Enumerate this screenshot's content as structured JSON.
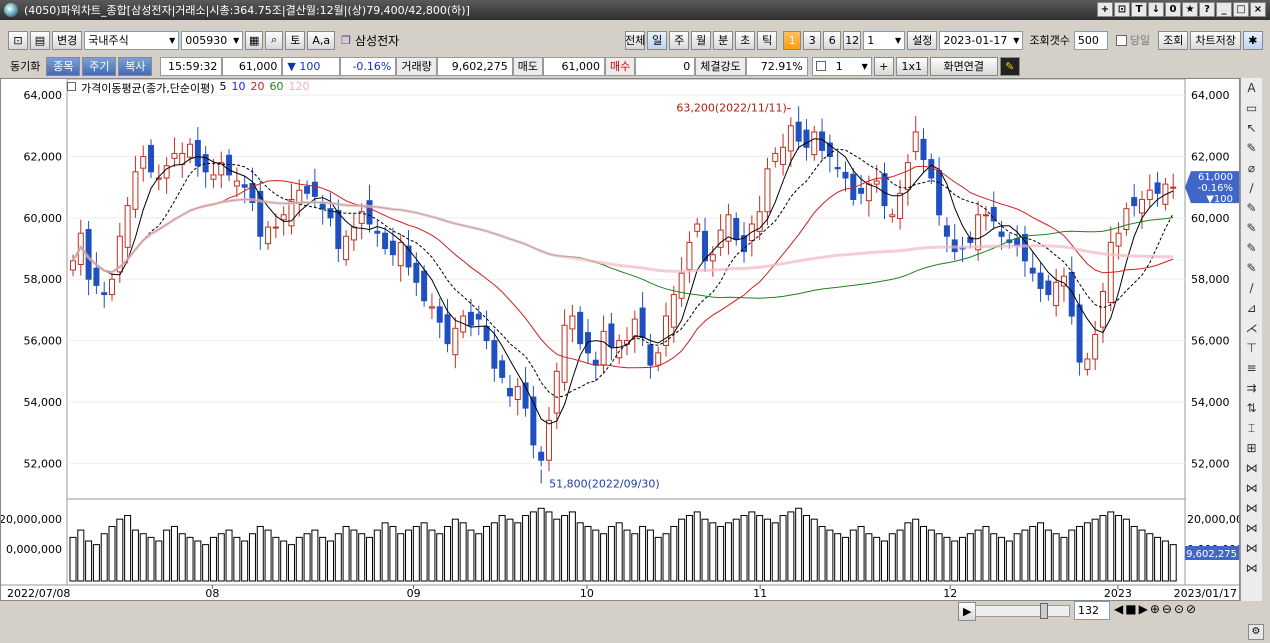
{
  "window": {
    "title": "(4050)파워차트_종합[삼성전자|거래소|시총:364.75조|결산월:12월|(상)79,400/42,800(하)]",
    "buttons": [
      "+",
      "⊡",
      "T",
      "↓",
      "0",
      "★",
      "?",
      "_",
      "□",
      "×"
    ]
  },
  "toolbar1": {
    "change_label": "변경",
    "market": "국내주식",
    "code": "005930",
    "to_label": "토",
    "aa_label": "A,a",
    "stock_name": "삼성전자",
    "periods": [
      "전체",
      "일",
      "주",
      "월",
      "분",
      "초",
      "틱"
    ],
    "active_period": "일",
    "intervals": [
      "1",
      "3",
      "6",
      "12"
    ],
    "active_interval": "1",
    "interval_value": "1",
    "settings_label": "설정",
    "date": "2023-01-17",
    "count_label": "조회갯수",
    "count_value": "500",
    "same_day_label": "당일",
    "query_label": "조회",
    "save_label": "차트저장"
  },
  "toolbar2": {
    "sync_label": "동기화",
    "tabs": [
      "종목",
      "주기",
      "복사"
    ],
    "time": "15:59:32",
    "price": "61,000",
    "change": "▼ 100",
    "change_pct": "-0.16%",
    "volume_label": "거래량",
    "volume": "9,602,275",
    "sell_label": "매도",
    "sell": "61,000",
    "buy_label": "매수",
    "buy": "0",
    "strength_label": "체결강도",
    "strength": "72.91%",
    "layout_value": "1",
    "plus_label": "+",
    "grid_label": "1x1",
    "screen_link_label": "화면연결"
  },
  "chart_data": {
    "type": "candlestick",
    "indicator_title": "가격이동평균(종가,단순이평)",
    "ma_periods": [
      {
        "label": "5",
        "color": "#000000"
      },
      {
        "label": "10",
        "color": "#1a1aff"
      },
      {
        "label": "20",
        "color": "#d02020"
      },
      {
        "label": "60",
        "color": "#208020"
      },
      {
        "label": "120",
        "color": "#f0b0c0"
      }
    ],
    "y_ticks": [
      "64,000",
      "62,000",
      "60,000",
      "58,000",
      "56,000",
      "54,000",
      "52,000"
    ],
    "ylim": [
      51000,
      64200
    ],
    "x_labels": [
      "2022/07/08",
      "08",
      "09",
      "10",
      "11",
      "12",
      "2023",
      "2023/01/17"
    ],
    "annotation_high": "63,200(2022/11/11)",
    "annotation_low": "51,800(2022/09/30)",
    "current_price_tag": {
      "price": "61,000",
      "pct": "-0.16%",
      "change": "▼100"
    },
    "volume_ticks": [
      "20,000,000",
      "0,000,000"
    ],
    "current_volume": "9,602,275",
    "x_month_fracs": [
      0.0,
      0.13,
      0.31,
      0.465,
      0.62,
      0.79,
      0.94,
      1.0
    ],
    "closes": [
      58600,
      59500,
      58000,
      57800,
      57500,
      58000,
      59400,
      60400,
      61500,
      62000,
      61500,
      61300,
      61700,
      62100,
      62100,
      62400,
      61700,
      61500,
      61400,
      61800,
      61400,
      61200,
      61000,
      60500,
      59400,
      59700,
      59700,
      60100,
      60600,
      60900,
      60800,
      60700,
      60300,
      60000,
      59000,
      59400,
      59700,
      60200,
      59800,
      59500,
      59000,
      58800,
      59200,
      58400,
      57900,
      57300,
      57100,
      56600,
      55900,
      56400,
      56800,
      56500,
      56700,
      56000,
      55100,
      54800,
      54200,
      54500,
      53800,
      52600,
      52100,
      53400,
      55000,
      56500,
      56800,
      55900,
      55600,
      55200,
      56300,
      55800,
      56000,
      56000,
      56700,
      56100,
      55200,
      55600,
      56800,
      57500,
      58200,
      59200,
      59800,
      58600,
      58800,
      59600,
      60100,
      59300,
      58900,
      59800,
      60200,
      61600,
      62100,
      62300,
      63000,
      62500,
      62300,
      62800,
      62200,
      62000,
      61600,
      61300,
      60600,
      60800,
      61100,
      61200,
      60400,
      60100,
      60800,
      61800,
      62800,
      61900,
      61300,
      60100,
      59400,
      58900,
      59000,
      59200,
      60100,
      60100,
      59900,
      59400,
      59200,
      59100,
      58600,
      58200,
      57700,
      57500,
      57900,
      58100,
      56800,
      55300,
      55400,
      56200,
      57600,
      59200,
      59500,
      60300,
      60400,
      60600,
      60900,
      60800,
      61100,
      61000
    ],
    "volumes": [
      12,
      14,
      11,
      10,
      13,
      15,
      17,
      18,
      14,
      13,
      12,
      11,
      14,
      15,
      13,
      12,
      11,
      10,
      12,
      13,
      14,
      12,
      11,
      13,
      15,
      14,
      12,
      11,
      10,
      12,
      13,
      14,
      12,
      11,
      13,
      15,
      14,
      13,
      12,
      14,
      16,
      15,
      13,
      14,
      15,
      16,
      14,
      13,
      15,
      17,
      16,
      14,
      13,
      15,
      16,
      18,
      17,
      16,
      18,
      19,
      20,
      19,
      17,
      18,
      19,
      16,
      15,
      14,
      13,
      15,
      16,
      14,
      13,
      15,
      14,
      12,
      13,
      15,
      17,
      18,
      19,
      17,
      16,
      15,
      16,
      17,
      18,
      19,
      18,
      17,
      16,
      18,
      19,
      20,
      18,
      17,
      15,
      14,
      13,
      12,
      14,
      15,
      13,
      12,
      11,
      13,
      14,
      16,
      17,
      15,
      14,
      13,
      12,
      11,
      12,
      13,
      14,
      15,
      13,
      12,
      11,
      13,
      14,
      15,
      16,
      14,
      13,
      12,
      14,
      15,
      16,
      17,
      18,
      19,
      18,
      17,
      15,
      14,
      13,
      12,
      11,
      10
    ]
  }
}
